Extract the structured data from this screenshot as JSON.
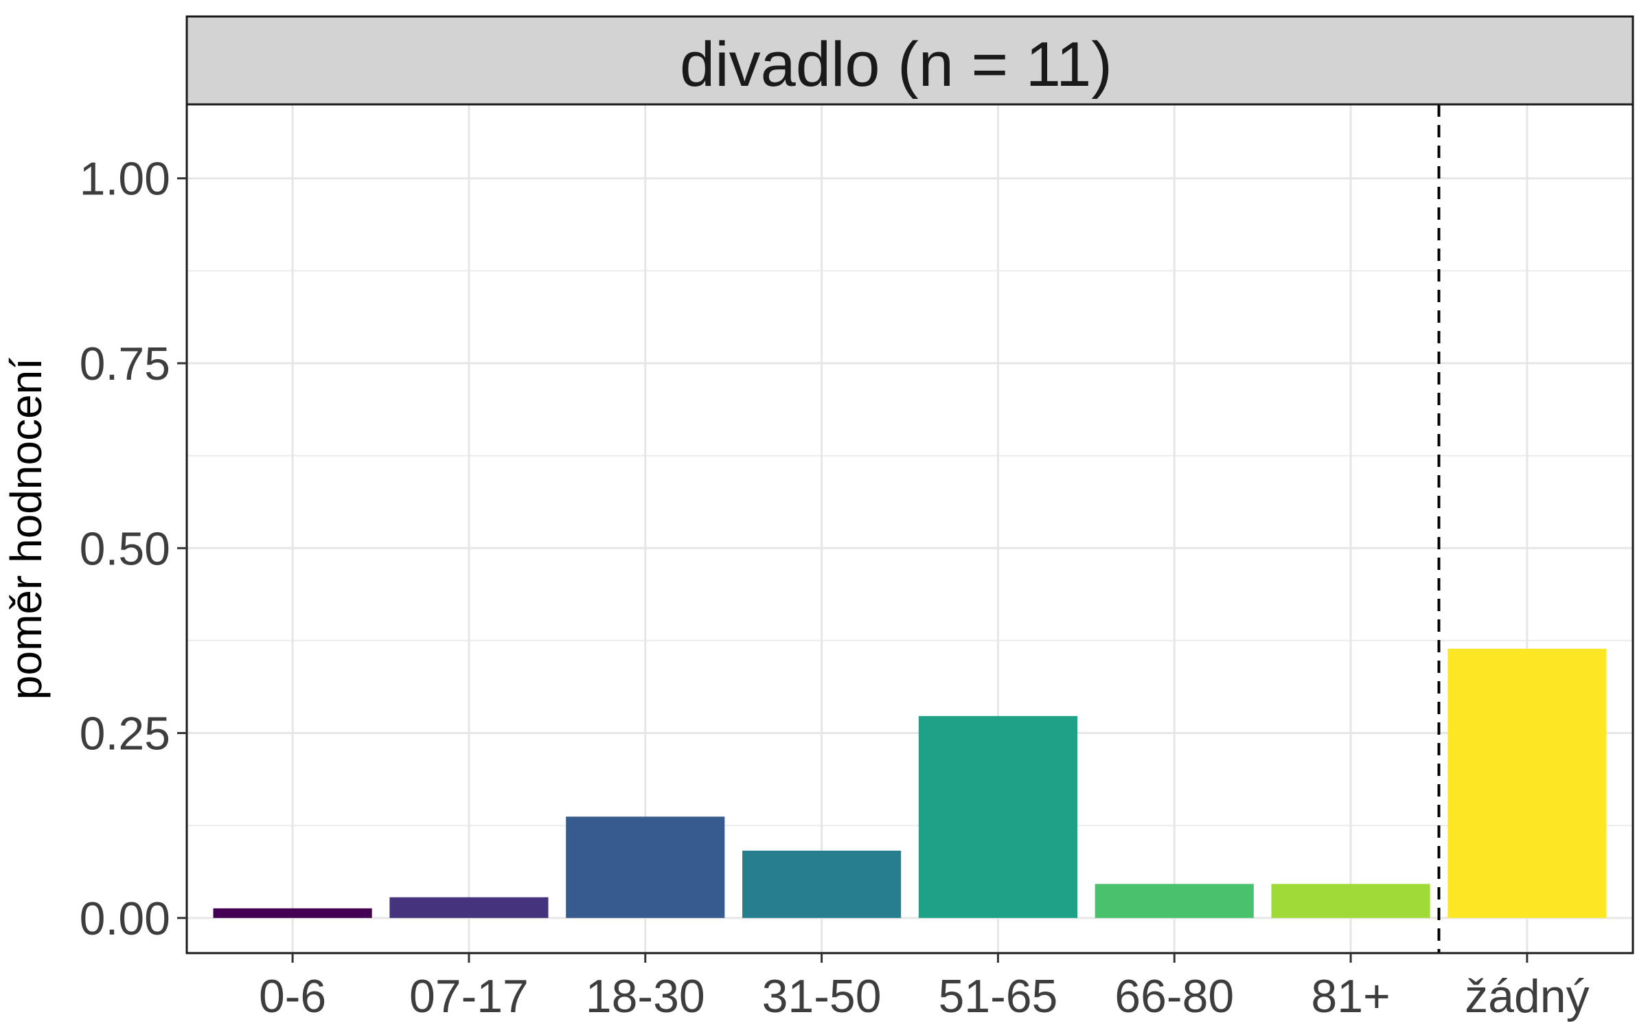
{
  "chart_data": {
    "type": "bar",
    "title": "divadlo (n = 11)",
    "xlabel": "",
    "ylabel": "poměr hodnocení",
    "categories": [
      "0-6",
      "07-17",
      "18-30",
      "31-50",
      "51-65",
      "66-80",
      "81+",
      "žádný"
    ],
    "values": [
      0.013,
      0.028,
      0.137,
      0.091,
      0.273,
      0.046,
      0.046,
      0.364
    ],
    "colors": [
      "#440154",
      "#46337E",
      "#365C8D",
      "#277F8E",
      "#1FA187",
      "#4AC16D",
      "#A0DA39",
      "#FDE725"
    ],
    "ylim": [
      0,
      1
    ],
    "y_ticks": [
      "0.00",
      "0.25",
      "0.50",
      "0.75",
      "1.00"
    ],
    "grid": true,
    "legend": "none",
    "annotations": [
      {
        "type": "vline",
        "position_between": [
          "81+",
          "žádný"
        ],
        "style": "dashed"
      }
    ]
  }
}
